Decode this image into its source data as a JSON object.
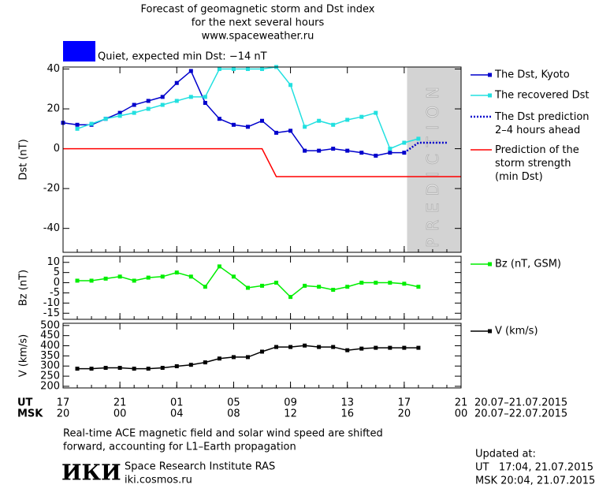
{
  "header": {
    "title": [
      "Forecast of geomagnetic storm and Dst index",
      "for the next several hours",
      "www.spaceweather.ru"
    ],
    "status": "Quiet, expected min Dst: −14 nT",
    "status_color": "#0000ff"
  },
  "x_axis": {
    "xlim": [
      0,
      28
    ],
    "xticks": [
      {
        "value": 0,
        "label": "17"
      },
      {
        "value": 4,
        "label": "21"
      },
      {
        "value": 8,
        "label": "01"
      },
      {
        "value": 12,
        "label": "05"
      },
      {
        "value": 16,
        "label": "09"
      },
      {
        "value": 20,
        "label": "13"
      },
      {
        "value": 24,
        "label": "17"
      },
      {
        "value": 28,
        "label": "21"
      }
    ],
    "msk_labels": [
      "20",
      "00",
      "04",
      "08",
      "12",
      "16",
      "20",
      "00"
    ],
    "ut_label": "UT",
    "msk_label": "MSK",
    "ut_range": "20.07–21.07.2015",
    "msk_range": "20.07–22.07.2015"
  },
  "chart_data": [
    {
      "type": "line",
      "y_label": "Dst (nT)",
      "ylim": [
        -52,
        41
      ],
      "yticks": [
        -40,
        -20,
        0,
        20,
        40
      ],
      "prediction_band": [
        24.2,
        28
      ],
      "band_label": "PREDICTION",
      "band_color": "#d3d3d3",
      "series": [
        {
          "name": "The Dst, Kyoto",
          "color": "#0000cc",
          "style": "solid",
          "marker": true,
          "x": [
            0,
            1,
            2,
            3,
            4,
            5,
            6,
            7,
            8,
            9,
            10,
            11,
            12,
            13,
            14,
            15,
            16,
            17,
            18,
            19,
            20,
            21,
            22,
            23,
            24
          ],
          "values": [
            13,
            12,
            12,
            15,
            18,
            22,
            24,
            26,
            33,
            39,
            23,
            15,
            12,
            11,
            14,
            8,
            9,
            -1,
            -1,
            0,
            -1,
            -2,
            -3.5,
            -2,
            -2
          ]
        },
        {
          "name": "The recovered Dst",
          "color": "#22e0e0",
          "style": "solid",
          "marker": true,
          "x": [
            1,
            2,
            3,
            4,
            5,
            6,
            7,
            8,
            9,
            10,
            11,
            12,
            13,
            14,
            15,
            16,
            17,
            18,
            19,
            20,
            21,
            22,
            23,
            24,
            25
          ],
          "values": [
            10,
            12.5,
            15,
            16.5,
            18,
            20,
            22,
            24,
            26,
            26,
            40,
            40,
            40,
            40,
            41,
            32,
            11,
            14,
            12,
            14.5,
            16,
            18,
            0,
            3,
            5
          ]
        },
        {
          "name": "The Dst prediction\n2–4 hours ahead",
          "color": "#0000cc",
          "style": "dotted",
          "marker": false,
          "x": [
            24,
            25,
            26,
            27
          ],
          "values": [
            -2,
            3,
            3,
            3
          ]
        },
        {
          "name": "Prediction of the\nstorm strength\n(min Dst)",
          "color": "#ff0000",
          "style": "solid",
          "marker": false,
          "x": [
            0,
            14,
            15,
            28
          ],
          "values": [
            0,
            0,
            -14,
            -14
          ]
        }
      ]
    },
    {
      "type": "line",
      "y_label": "Bz (nT)",
      "ylim": [
        -18,
        13
      ],
      "yticks": [
        10,
        5,
        0,
        -5,
        -10,
        -15
      ],
      "series": [
        {
          "name": "Bz (nT, GSM)",
          "color": "#00ee00",
          "style": "solid",
          "marker": true,
          "x": [
            1,
            2,
            3,
            4,
            5,
            6,
            7,
            8,
            9,
            10,
            11,
            12,
            13,
            14,
            15,
            16,
            17,
            18,
            19,
            20,
            21,
            22,
            23,
            24,
            25
          ],
          "values": [
            1,
            1,
            2,
            3,
            1,
            2.5,
            3,
            5,
            3,
            -2,
            8,
            3,
            -2.5,
            -1.5,
            0,
            -7,
            -1.5,
            -2,
            -3.5,
            -2,
            0,
            0,
            0,
            -0.5,
            -2
          ]
        }
      ]
    },
    {
      "type": "line",
      "y_label": "V (km/s)",
      "ylim": [
        192,
        511
      ],
      "yticks": [
        500,
        450,
        400,
        350,
        300,
        250,
        200
      ],
      "series": [
        {
          "name": "V (km/s)",
          "color": "#000000",
          "style": "solid",
          "marker": true,
          "x": [
            1,
            2,
            3,
            4,
            5,
            6,
            7,
            8,
            9,
            10,
            11,
            12,
            13,
            14,
            15,
            16,
            17,
            18,
            19,
            20,
            21,
            22,
            23,
            24,
            25
          ],
          "values": [
            287,
            287,
            291,
            291,
            287,
            287,
            291,
            299,
            306,
            318,
            337,
            344,
            344,
            371,
            394,
            394,
            401,
            394,
            394,
            378,
            386,
            390,
            390,
            390,
            390
          ]
        }
      ]
    }
  ],
  "footer": {
    "note": [
      "Real-time ACE magnetic field and solar wind speed are shifted",
      "forward, accounting for L1–Earth propagation"
    ],
    "logo": "ИКИ",
    "institute": "Space Research Institute RAS",
    "site": "iki.cosmos.ru",
    "updated_label": "Updated at:",
    "updated_ut": "UT   17:04, 21.07.2015",
    "updated_msk": "MSK 20:04, 21.07.2015"
  }
}
